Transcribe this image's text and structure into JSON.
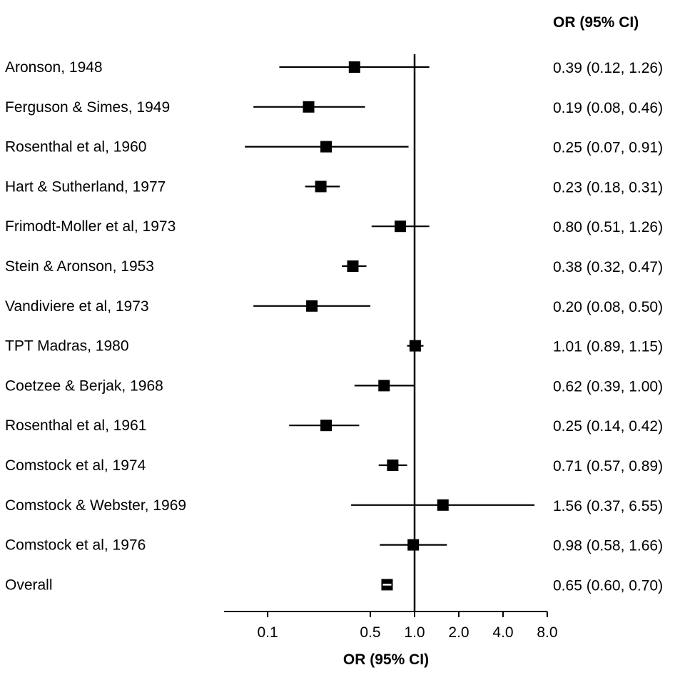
{
  "chart_data": {
    "type": "forest",
    "title": "",
    "column_header": "OR (95% CI)",
    "xlabel": "OR (95% CI)",
    "x_scale": "log",
    "xlim": [
      0.05,
      8.0
    ],
    "x_ticks": [
      {
        "value": 0.1,
        "label": "0.1"
      },
      {
        "value": 0.5,
        "label": "0.5"
      },
      {
        "value": 1.0,
        "label": "1.0"
      },
      {
        "value": 2.0,
        "label": "2.0"
      },
      {
        "value": 4.0,
        "label": "4.0"
      },
      {
        "value": 8.0,
        "label": "8.0"
      }
    ],
    "reference_line": 1.0,
    "rows": [
      {
        "study": "Aronson, 1948",
        "or": 0.39,
        "lo": 0.12,
        "hi": 1.26,
        "ci_text": "0.39 (0.12, 1.26)"
      },
      {
        "study": "Ferguson & Simes, 1949",
        "or": 0.19,
        "lo": 0.08,
        "hi": 0.46,
        "ci_text": "0.19 (0.08, 0.46)"
      },
      {
        "study": "Rosenthal et al, 1960",
        "or": 0.25,
        "lo": 0.07,
        "hi": 0.91,
        "ci_text": "0.25 (0.07, 0.91)"
      },
      {
        "study": "Hart & Sutherland, 1977",
        "or": 0.23,
        "lo": 0.18,
        "hi": 0.31,
        "ci_text": "0.23 (0.18, 0.31)"
      },
      {
        "study": "Frimodt-Moller et al, 1973",
        "or": 0.8,
        "lo": 0.51,
        "hi": 1.26,
        "ci_text": "0.80 (0.51, 1.26)"
      },
      {
        "study": "Stein & Aronson, 1953",
        "or": 0.38,
        "lo": 0.32,
        "hi": 0.47,
        "ci_text": "0.38 (0.32, 0.47)"
      },
      {
        "study": "Vandiviere et al, 1973",
        "or": 0.2,
        "lo": 0.08,
        "hi": 0.5,
        "ci_text": "0.20 (0.08, 0.50)"
      },
      {
        "study": "TPT Madras, 1980",
        "or": 1.01,
        "lo": 0.89,
        "hi": 1.15,
        "ci_text": "1.01 (0.89, 1.15)"
      },
      {
        "study": "Coetzee & Berjak, 1968",
        "or": 0.62,
        "lo": 0.39,
        "hi": 1.0,
        "ci_text": "0.62 (0.39, 1.00)"
      },
      {
        "study": "Rosenthal et al, 1961",
        "or": 0.25,
        "lo": 0.14,
        "hi": 0.42,
        "ci_text": "0.25 (0.14, 0.42)"
      },
      {
        "study": "Comstock et al, 1974",
        "or": 0.71,
        "lo": 0.57,
        "hi": 0.89,
        "ci_text": "0.71 (0.57, 0.89)"
      },
      {
        "study": "Comstock & Webster, 1969",
        "or": 1.56,
        "lo": 0.37,
        "hi": 6.55,
        "ci_text": "1.56 (0.37, 6.55)"
      },
      {
        "study": "Comstock et al, 1976",
        "or": 0.98,
        "lo": 0.58,
        "hi": 1.66,
        "ci_text": "0.98 (0.58, 1.66)"
      },
      {
        "study": "Overall",
        "or": 0.65,
        "lo": 0.6,
        "hi": 0.7,
        "ci_text": "0.65 (0.60, 0.70)",
        "overall": true
      }
    ],
    "grid": false,
    "colors": {
      "ink": "#000000",
      "background": "#ffffff"
    }
  }
}
